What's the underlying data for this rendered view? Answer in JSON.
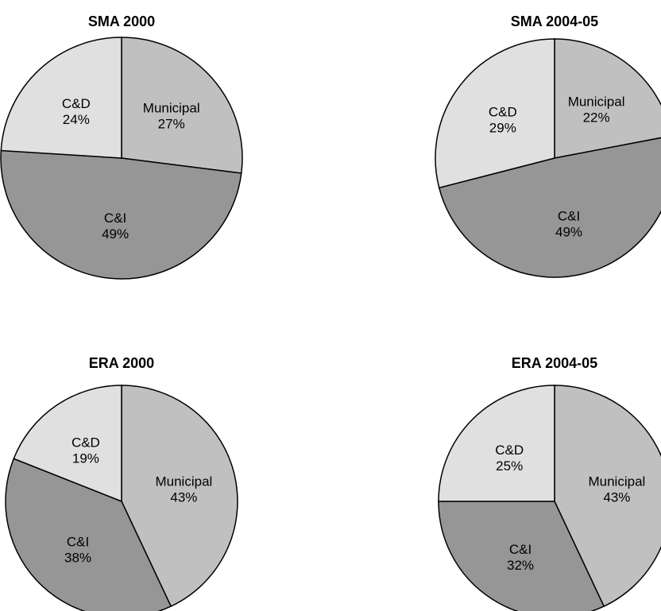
{
  "chart_data": [
    {
      "type": "pie",
      "title": "SMA 2000",
      "slices": [
        {
          "label": "Municipal",
          "value": 27,
          "display": "27%",
          "color": "#c0c0c0"
        },
        {
          "label": "C&I",
          "value": 49,
          "display": "49%",
          "color": "#969696"
        },
        {
          "label": "C&D",
          "value": 24,
          "display": "24%",
          "color": "#e0e0e0"
        }
      ]
    },
    {
      "type": "pie",
      "title": "SMA 2004-05",
      "slices": [
        {
          "label": "Municipal",
          "value": 22,
          "display": "22%",
          "color": "#c0c0c0"
        },
        {
          "label": "C&I",
          "value": 49,
          "display": "49%",
          "color": "#969696"
        },
        {
          "label": "C&D",
          "value": 29,
          "display": "29%",
          "color": "#e0e0e0"
        }
      ]
    },
    {
      "type": "pie",
      "title": "ERA 2000",
      "slices": [
        {
          "label": "Municipal",
          "value": 43,
          "display": "43%",
          "color": "#c0c0c0"
        },
        {
          "label": "C&I",
          "value": 38,
          "display": "38%",
          "color": "#969696"
        },
        {
          "label": "C&D",
          "value": 19,
          "display": "19%",
          "color": "#e0e0e0"
        }
      ]
    },
    {
      "type": "pie",
      "title": "ERA 2004-05",
      "slices": [
        {
          "label": "Municipal",
          "value": 43,
          "display": "43%",
          "color": "#c0c0c0"
        },
        {
          "label": "C&I",
          "value": 32,
          "display": "32%",
          "color": "#969696"
        },
        {
          "label": "C&D",
          "value": 25,
          "display": "25%",
          "color": "#e0e0e0"
        }
      ]
    }
  ]
}
